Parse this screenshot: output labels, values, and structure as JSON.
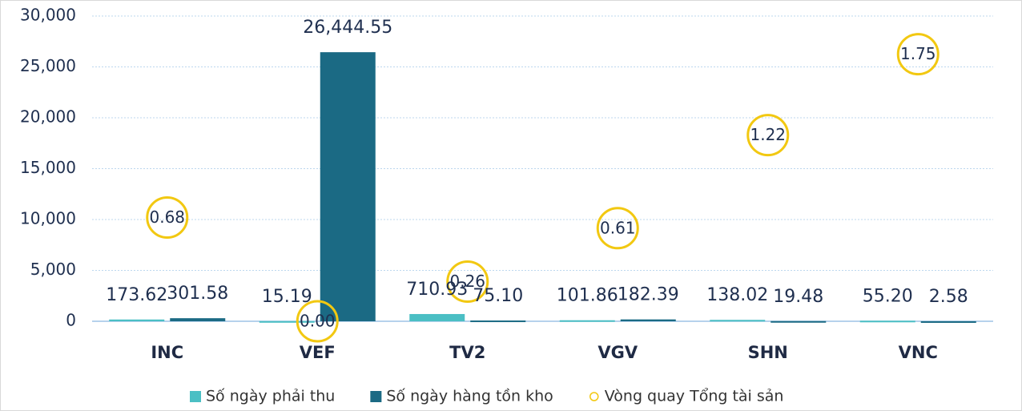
{
  "chart_data": {
    "type": "bar",
    "categories": [
      "INC",
      "VEF",
      "TV2",
      "VGV",
      "SHN",
      "VNC"
    ],
    "series": [
      {
        "name": "Số ngày phải thu",
        "color": "#4bbfc4",
        "values": [
          173.62,
          15.19,
          710.93,
          101.86,
          138.02,
          55.2
        ],
        "value_labels": [
          "173.62",
          "15.19",
          "710.93",
          "101.86",
          "138.02",
          "55.20"
        ]
      },
      {
        "name": "Số ngày hàng tồn kho",
        "color": "#1b6a84",
        "values": [
          301.58,
          26444.55,
          75.1,
          182.39,
          19.48,
          2.58
        ],
        "value_labels": [
          "301.58",
          "26,444.55",
          "75.10",
          "182.39",
          "19.48",
          "2.58"
        ]
      },
      {
        "name": "Vòng quay Tổng tài sản",
        "color": "#f2c811",
        "type": "scatter",
        "axis": "y2",
        "values": [
          0.68,
          0.0,
          0.26,
          0.61,
          1.22,
          1.75
        ],
        "value_labels": [
          "0.68",
          "0.00",
          "0.26",
          "0.61",
          "1.22",
          "1.75"
        ]
      }
    ],
    "ylim": [
      0,
      30000
    ],
    "yticks": [
      0,
      {
        "value": 5000,
        "label": "5,000"
      },
      {
        "value": 10000,
        "label": "10,000"
      },
      {
        "value": 15000,
        "label": "15,000"
      },
      {
        "value": 20000,
        "label": "20,000"
      },
      {
        "value": 25000,
        "label": "25,000"
      },
      {
        "value": 30000,
        "label": "30,000"
      }
    ],
    "y2lim": [
      0,
      2
    ],
    "grid": true,
    "legend": "bottom"
  }
}
